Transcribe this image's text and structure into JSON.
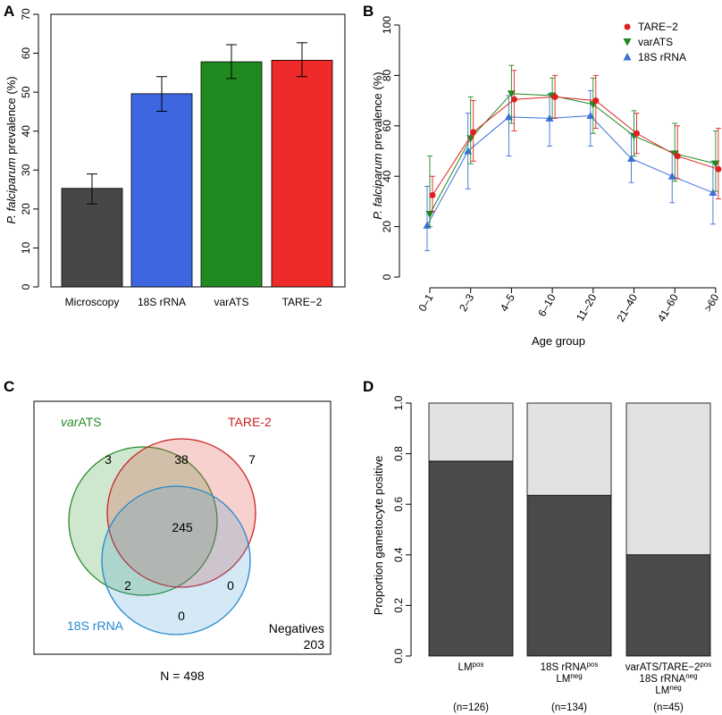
{
  "panel_labels": [
    "A",
    "B",
    "C",
    "D"
  ],
  "chart_data": [
    {
      "panel": "A",
      "type": "bar",
      "categories": [
        "Microscopy",
        "18S rRNA",
        "varATS",
        "TARE−2"
      ],
      "values": [
        25.3,
        49.6,
        57.8,
        58.2
      ],
      "errors_low": [
        21.3,
        45.1,
        53.5,
        54.0
      ],
      "errors_high": [
        29.0,
        54.0,
        62.2,
        62.7
      ],
      "colors": [
        "#474747",
        "#3d66e0",
        "#208a20",
        "#ee2a2a"
      ],
      "ylabel_italic": "P. falciparum",
      "ylabel_rest": " prevalence (%)",
      "ylim": [
        0,
        70
      ],
      "yticks": [
        0,
        10,
        20,
        30,
        40,
        50,
        60,
        70
      ]
    },
    {
      "panel": "B",
      "type": "line",
      "categories": [
        "0–1",
        "2–3",
        "4–5",
        "6–10",
        "11–20",
        "21–40",
        "41–60",
        ">60"
      ],
      "xlabel": "Age group",
      "ylabel_italic": "P. falciparum",
      "ylabel_rest": " prevalence (%)",
      "ylim": [
        0,
        100
      ],
      "yticks": [
        0,
        20,
        40,
        60,
        80,
        100
      ],
      "legend_position": "top-right",
      "series": [
        {
          "name": "TARE−2",
          "color": "#e02020",
          "marker": "circle",
          "values": [
            32.5,
            57.5,
            70.5,
            71.5,
            70,
            57,
            48,
            42.8
          ],
          "low": [
            26,
            46,
            58,
            63,
            59,
            49,
            39,
            31
          ],
          "high": [
            40,
            70,
            82,
            80,
            80,
            65,
            60,
            59
          ]
        },
        {
          "name": "varATS",
          "color": "#1f8a1f",
          "marker": "triangle-down",
          "values": [
            25,
            55,
            72.8,
            72,
            68.5,
            56,
            49,
            45
          ],
          "low": [
            20,
            45,
            61,
            63,
            57,
            48,
            38,
            34
          ],
          "high": [
            48,
            71.5,
            84,
            79,
            79,
            66,
            61,
            58
          ]
        },
        {
          "name": "18S rRNA",
          "color": "#3a6fd8",
          "marker": "triangle-up",
          "values": [
            20.5,
            50,
            63.5,
            63,
            64,
            47,
            40,
            33.5
          ],
          "low": [
            10.5,
            35,
            48,
            52,
            52,
            37.5,
            29.5,
            21
          ],
          "high": [
            36,
            65,
            72,
            72.5,
            74,
            57,
            50,
            46
          ]
        }
      ]
    },
    {
      "panel": "C",
      "type": "venn",
      "sets": [
        "varATS",
        "TARE-2",
        "18S rRNA"
      ],
      "set_label_varats_italic": "var",
      "set_label_varats_rest": "ATS",
      "set_label_tare": "TARE-2",
      "set_label_18s": "18S rRNA",
      "set_colors": [
        "#2a8a2a",
        "#cc2222",
        "#2288cc"
      ],
      "regions": {
        "varATS_only": "3",
        "varATS_TARE2": "38",
        "TARE2_only": "7",
        "all_three": "245",
        "varATS_18S": "2",
        "TARE2_18S": "0",
        "18S_only": "0"
      },
      "negatives_label": "Negatives",
      "negatives_value": "203",
      "total_label": "N = 498"
    },
    {
      "panel": "D",
      "type": "bar",
      "stacked": true,
      "ylabel": "Proportion gametocyte positive",
      "ylim": [
        0,
        1
      ],
      "yticks": [
        "0.0",
        "0.2",
        "0.4",
        "0.6",
        "0.8",
        "1.0"
      ],
      "colors": {
        "positive": "#4a4a4a",
        "negative": "#e2e2e2"
      },
      "groups": [
        {
          "label_lines": [
            [
              "LM",
              "pos"
            ]
          ],
          "n": "(n=126)",
          "positive_fraction": 0.77
        },
        {
          "label_lines": [
            [
              "18S rRNA",
              "pos"
            ],
            [
              "LM",
              "neg"
            ]
          ],
          "n": "(n=134)",
          "positive_fraction": 0.635
        },
        {
          "label_lines": [
            [
              "varATS/TARE−2",
              "pos"
            ],
            [
              "18S rRNA",
              "neg"
            ],
            [
              "LM",
              "neg"
            ]
          ],
          "n": "(n=45)",
          "positive_fraction": 0.4
        }
      ]
    }
  ]
}
